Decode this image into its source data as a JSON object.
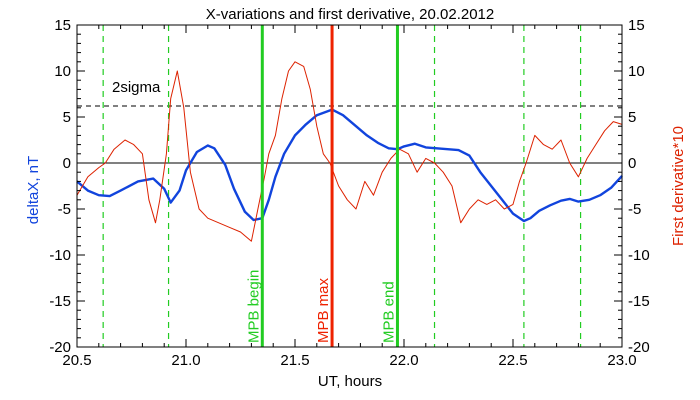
{
  "chart_data": {
    "type": "line",
    "title": "X-variations and first derivative, 20.02.2012",
    "xlabel": "UT, hours",
    "ylabel_left": "deltaX, nT",
    "ylabel_right": "First derivative*10",
    "xlim": [
      20.5,
      23.0
    ],
    "ylim": [
      -20,
      15
    ],
    "xticks": [
      "20.5",
      "21.0",
      "21.5",
      "22.0",
      "22.5",
      "23.0"
    ],
    "yticks": [
      "15",
      "10",
      "5",
      "0",
      "-5",
      "-10",
      "-15",
      "-20"
    ],
    "threshold": {
      "label": "2sigma",
      "value": 6.2
    },
    "markers": [
      {
        "label": "MPB begin",
        "x": 21.35,
        "color": "#22cc22"
      },
      {
        "label": "MPB max",
        "x": 21.67,
        "color": "#ee2200"
      },
      {
        "label": "MPB end",
        "x": 21.97,
        "color": "#22cc22"
      }
    ],
    "dashed_markers_x": [
      20.62,
      20.92,
      22.14,
      22.55,
      22.81
    ],
    "colors": {
      "deltaX": "#1144dd",
      "derivative": "#dd2200",
      "dashed_marker": "#22cc22"
    },
    "series": [
      {
        "key": "deltaX",
        "x": [
          20.5,
          20.55,
          20.6,
          20.65,
          20.7,
          20.78,
          20.85,
          20.9,
          20.93,
          20.97,
          21.0,
          21.05,
          21.1,
          21.13,
          21.18,
          21.22,
          21.27,
          21.31,
          21.35,
          21.38,
          21.41,
          21.45,
          21.5,
          21.55,
          21.6,
          21.67,
          21.72,
          21.78,
          21.83,
          21.88,
          21.93,
          21.97,
          22.0,
          22.05,
          22.1,
          22.15,
          22.2,
          22.25,
          22.3,
          22.35,
          22.4,
          22.45,
          22.5,
          22.55,
          22.58,
          22.62,
          22.67,
          22.72,
          22.76,
          22.8,
          22.85,
          22.9,
          22.95,
          23.0
        ],
        "y": [
          -2.0,
          -3.0,
          -3.5,
          -3.6,
          -3.0,
          -2.0,
          -1.7,
          -2.8,
          -4.3,
          -3.0,
          -0.8,
          1.2,
          1.9,
          1.6,
          -0.2,
          -2.8,
          -5.3,
          -6.2,
          -6.0,
          -4.0,
          -1.5,
          1.0,
          3.0,
          4.2,
          5.2,
          5.8,
          5.2,
          4.0,
          3.0,
          2.2,
          1.6,
          1.5,
          1.8,
          2.1,
          1.7,
          1.6,
          1.5,
          1.4,
          0.8,
          -1.0,
          -2.5,
          -4.0,
          -5.5,
          -6.3,
          -6.0,
          -5.2,
          -4.6,
          -4.1,
          -3.9,
          -4.2,
          -4.0,
          -3.5,
          -2.7,
          -1.4
        ]
      },
      {
        "key": "derivative",
        "x": [
          20.5,
          20.55,
          20.6,
          20.63,
          20.67,
          20.72,
          20.76,
          20.8,
          20.83,
          20.86,
          20.88,
          20.91,
          20.93,
          20.96,
          20.99,
          21.02,
          21.06,
          21.1,
          21.15,
          21.2,
          21.25,
          21.3,
          21.33,
          21.36,
          21.38,
          21.41,
          21.44,
          21.47,
          21.5,
          21.54,
          21.57,
          21.6,
          21.63,
          21.66,
          21.7,
          21.74,
          21.78,
          21.82,
          21.86,
          21.9,
          21.94,
          21.98,
          22.02,
          22.06,
          22.1,
          22.14,
          22.18,
          22.22,
          22.26,
          22.3,
          22.34,
          22.38,
          22.42,
          22.46,
          22.5,
          22.53,
          22.56,
          22.6,
          22.64,
          22.68,
          22.72,
          22.76,
          22.8,
          22.84,
          22.88,
          22.92,
          22.96,
          23.0
        ],
        "y": [
          -3.5,
          -1.5,
          -0.5,
          0.0,
          1.5,
          2.5,
          2.0,
          1.0,
          -4.0,
          -6.5,
          -4.0,
          1.0,
          7.0,
          10.0,
          6.0,
          -1.0,
          -5.0,
          -6.0,
          -6.5,
          -7.0,
          -7.5,
          -8.5,
          -5.0,
          -1.5,
          1.0,
          3.0,
          7.0,
          10.0,
          11.0,
          10.5,
          8.0,
          4.0,
          1.0,
          0.0,
          -2.5,
          -4.0,
          -5.0,
          -2.0,
          -3.5,
          -1.0,
          0.5,
          1.5,
          1.0,
          -1.0,
          0.5,
          0.0,
          -1.0,
          -2.5,
          -6.5,
          -5.0,
          -4.0,
          -4.5,
          -4.0,
          -5.0,
          -4.5,
          -2.0,
          0.0,
          3.0,
          2.0,
          1.5,
          2.5,
          0.0,
          -1.5,
          0.5,
          2.0,
          3.5,
          4.5,
          4.2
        ]
      }
    ]
  }
}
